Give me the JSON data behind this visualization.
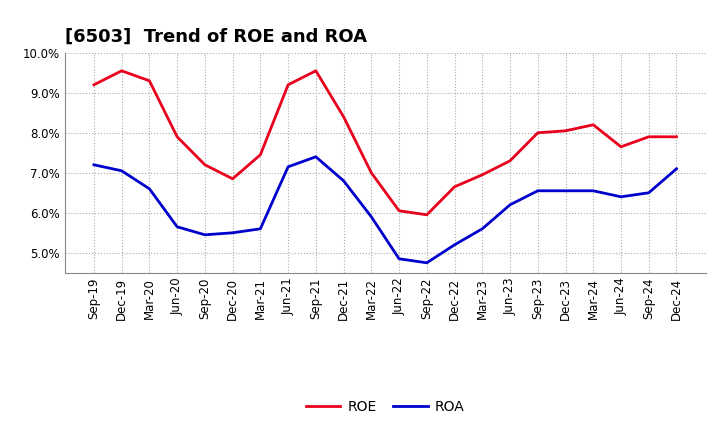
{
  "title": "[6503]  Trend of ROE and ROA",
  "x_labels": [
    "Sep-19",
    "Dec-19",
    "Mar-20",
    "Jun-20",
    "Sep-20",
    "Dec-20",
    "Mar-21",
    "Jun-21",
    "Sep-21",
    "Dec-21",
    "Mar-22",
    "Jun-22",
    "Sep-22",
    "Dec-22",
    "Mar-23",
    "Jun-23",
    "Sep-23",
    "Dec-23",
    "Mar-24",
    "Jun-24",
    "Sep-24",
    "Dec-24"
  ],
  "ROE": [
    9.2,
    9.55,
    9.3,
    7.9,
    7.2,
    6.85,
    7.45,
    9.2,
    9.55,
    8.4,
    7.0,
    6.05,
    5.95,
    6.65,
    6.95,
    7.3,
    8.0,
    8.05,
    8.2,
    7.65,
    7.9,
    7.9
  ],
  "ROA": [
    7.2,
    7.05,
    6.6,
    5.65,
    5.45,
    5.5,
    5.6,
    7.15,
    7.4,
    6.8,
    5.9,
    4.85,
    4.75,
    5.2,
    5.6,
    6.2,
    6.55,
    6.55,
    6.55,
    6.4,
    6.5,
    7.1
  ],
  "ROE_color": "#e8001c",
  "ROA_color": "#0000cc",
  "ylim_min": 4.5,
  "ylim_max": 10.0,
  "yticks": [
    5.0,
    6.0,
    7.0,
    8.0,
    9.0,
    10.0
  ],
  "background_color": "#ffffff",
  "plot_bg_color": "#ffffff",
  "grid_color": "#aaaaaa",
  "title_fontsize": 13,
  "legend_fontsize": 10,
  "tick_fontsize": 8.5
}
